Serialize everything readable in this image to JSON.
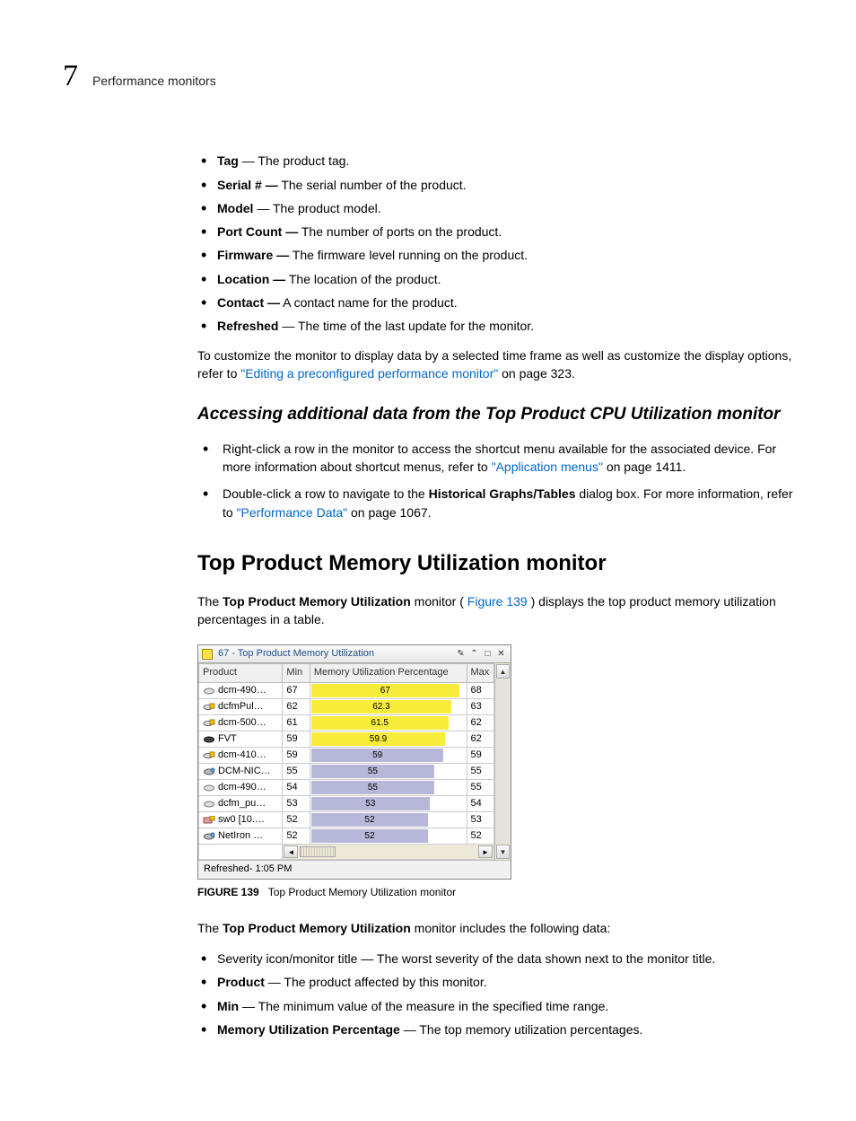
{
  "header": {
    "page_number": "7",
    "section": "Performance monitors"
  },
  "defs": [
    {
      "term": "Tag",
      "desc": " — The product tag."
    },
    {
      "term": "Serial # —",
      "desc": " The serial number of the product."
    },
    {
      "term": "Model",
      "desc": " — The product model."
    },
    {
      "term": "Port Count —",
      "desc": " The number of ports on the product."
    },
    {
      "term": "Firmware —",
      "desc": " The firmware level running on the product."
    },
    {
      "term": "Location —",
      "desc": " The location of the product."
    },
    {
      "term": "Contact —",
      "desc": " A contact name for the product."
    },
    {
      "term": "Refreshed",
      "desc": " — The time of the last update for the monitor."
    }
  ],
  "customize": {
    "pre": "To customize the monitor to display data by a selected time frame as well as customize the display options, refer to ",
    "link": "\"Editing a preconfigured performance monitor\"",
    "post": " on page 323."
  },
  "subheading": "Accessing additional data from the Top Product CPU Utilization monitor",
  "access_items": [
    {
      "pre": "Right-click a row in the monitor to access the shortcut menu available for the associated device. For more information about shortcut menus, refer to ",
      "link": "\"Application menus\"",
      "post": " on page 1411."
    },
    {
      "pre": "Double-click a row to navigate to the ",
      "bold": "Historical Graphs/Tables",
      "mid": " dialog box. For more information, refer to ",
      "link": "\"Performance Data\"",
      "post": " on page 1067."
    }
  ],
  "heading": "Top Product Memory Utilization monitor",
  "intro": {
    "pre": "The ",
    "bold": "Top Product Memory Utilization",
    "mid": " monitor (",
    "link": "Figure 139",
    "post": ") displays the top product memory utilization percentages in a table."
  },
  "monitor": {
    "title": "67 - Top Product Memory Utilization",
    "columns": {
      "product": "Product",
      "min": "Min",
      "pct": "Memory Utilization Percentage",
      "max": "Max"
    },
    "colors": {
      "bar_warn": "#f7ec3a",
      "bar_normal": "#b7b7d9",
      "grid": "#cccccc",
      "header_bg": "#f0f0f0"
    },
    "rows": [
      {
        "icon": "switch-gray",
        "product": "dcm-490…",
        "min": "67",
        "pct": "67",
        "bar_pct": 95,
        "bar_warn": true,
        "max": "68"
      },
      {
        "icon": "switch-badge",
        "product": "dcfmPul…",
        "min": "62",
        "pct": "62.3",
        "bar_pct": 90,
        "bar_warn": true,
        "max": "63"
      },
      {
        "icon": "switch-badge",
        "product": "dcm-500…",
        "min": "61",
        "pct": "61.5",
        "bar_pct": 88,
        "bar_warn": true,
        "max": "62"
      },
      {
        "icon": "switch-dark",
        "product": "FVT",
        "min": "59",
        "pct": "59.9",
        "bar_pct": 86,
        "bar_warn": true,
        "max": "62"
      },
      {
        "icon": "switch-badge",
        "product": "dcm-410…",
        "min": "59",
        "pct": "59",
        "bar_pct": 85,
        "bar_warn": false,
        "max": "59"
      },
      {
        "icon": "switch-net",
        "product": "DCM-NIC…",
        "min": "55",
        "pct": "55",
        "bar_pct": 79,
        "bar_warn": false,
        "max": "55"
      },
      {
        "icon": "switch-gray",
        "product": "dcm-490…",
        "min": "54",
        "pct": "55",
        "bar_pct": 79,
        "bar_warn": false,
        "max": "55"
      },
      {
        "icon": "switch-gray",
        "product": "dcfm_pu…",
        "min": "53",
        "pct": "53",
        "bar_pct": 76,
        "bar_warn": false,
        "max": "54"
      },
      {
        "icon": "switch-red",
        "product": "sw0 [10.…",
        "min": "52",
        "pct": "52",
        "bar_pct": 75,
        "bar_warn": false,
        "max": "53"
      },
      {
        "icon": "switch-net",
        "product": "NetIron …",
        "min": "52",
        "pct": "52",
        "bar_pct": 75,
        "bar_warn": false,
        "max": "52"
      }
    ],
    "footer": "Refreshed- 1:05 PM"
  },
  "figure_caption": {
    "label": "FIGURE 139",
    "text": "Top Product Memory Utilization monitor"
  },
  "includes_intro": {
    "pre": "The ",
    "bold": "Top Product Memory Utilization",
    "post": " monitor includes the following data:"
  },
  "includes": [
    {
      "term": "",
      "desc": "Severity icon/monitor title — The worst severity of the data shown next to the monitor title."
    },
    {
      "term": "Product",
      "desc": " — The product affected by this monitor."
    },
    {
      "term": "Min",
      "desc": " — The minimum value of the measure in the specified time range."
    },
    {
      "term": "Memory Utilization Percentage",
      "desc": " — The top memory utilization percentages."
    }
  ]
}
